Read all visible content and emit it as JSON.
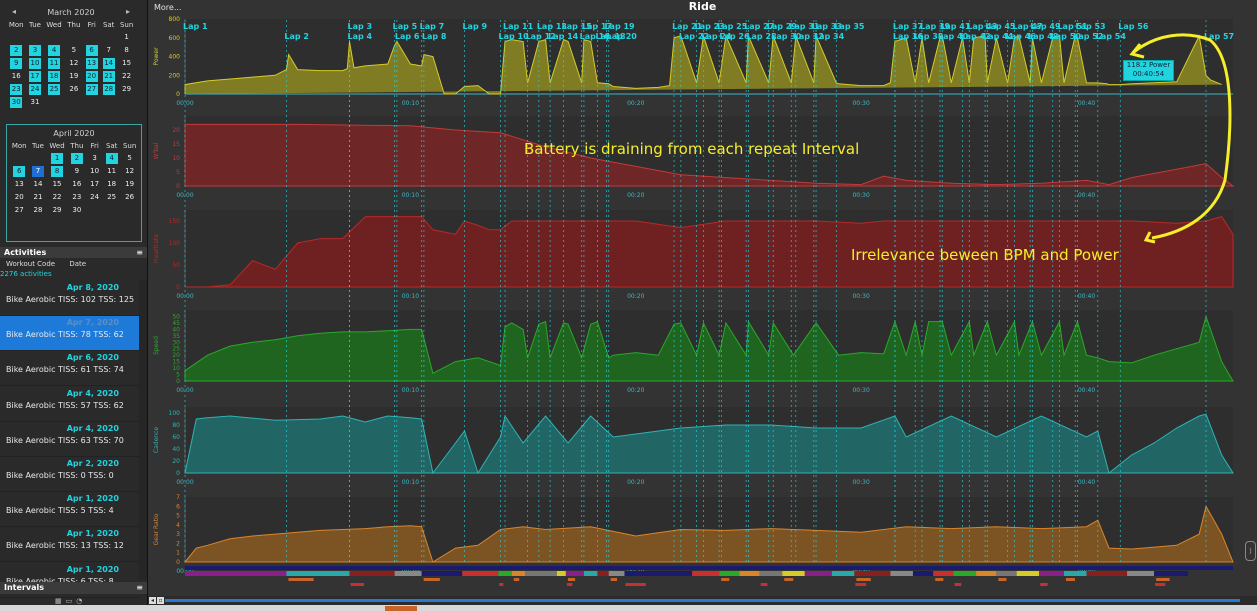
{
  "calendar_march": {
    "title": "March 2020",
    "weekdays": [
      "Mon",
      "Tue",
      "Wed",
      "Thu",
      "Fri",
      "Sat",
      "Sun"
    ],
    "weeks": [
      [
        "",
        "",
        "",
        "",
        "",
        "",
        "1"
      ],
      [
        "2",
        "3",
        "4",
        "5",
        "6",
        "7",
        "8"
      ],
      [
        "9",
        "10",
        "11",
        "12",
        "13",
        "14",
        "15"
      ],
      [
        "16",
        "17",
        "18",
        "19",
        "20",
        "21",
        "22"
      ],
      [
        "23",
        "24",
        "25",
        "26",
        "27",
        "28",
        "29"
      ],
      [
        "30",
        "31",
        "",
        "",
        "",
        "",
        ""
      ]
    ],
    "highlighted": [
      "2",
      "3",
      "4",
      "6",
      "9",
      "10",
      "11",
      "13",
      "14",
      "17",
      "18",
      "20",
      "21",
      "23",
      "24",
      "25",
      "27",
      "28",
      "30"
    ]
  },
  "calendar_april": {
    "title": "April 2020",
    "weekdays": [
      "Mon",
      "Tue",
      "Wed",
      "Thu",
      "Fri",
      "Sat",
      "Sun"
    ],
    "weeks": [
      [
        "",
        "",
        "1",
        "2",
        "3",
        "4",
        "5"
      ],
      [
        "6",
        "7",
        "8",
        "9",
        "10",
        "11",
        "12"
      ],
      [
        "13",
        "14",
        "15",
        "16",
        "17",
        "18",
        "19"
      ],
      [
        "20",
        "21",
        "22",
        "23",
        "24",
        "25",
        "26"
      ],
      [
        "27",
        "28",
        "29",
        "30",
        "",
        "",
        ""
      ]
    ],
    "highlighted": [
      "1",
      "2",
      "4",
      "6",
      "8"
    ],
    "selected": "7"
  },
  "activities": {
    "header": "Activities",
    "col_workout": "Workout Code",
    "col_date": "Date",
    "count": "2276 activities",
    "items": [
      {
        "date": "Apr 8, 2020",
        "text": "Bike Aerobic TISS: 102 TSS: 125"
      },
      {
        "date": "Apr 7, 2020",
        "text": "Bike Aerobic TISS: 78 TSS: 62"
      },
      {
        "date": "Apr 6, 2020",
        "text": "Bike Aerobic TISS: 61 TSS: 74"
      },
      {
        "date": "Apr 4, 2020",
        "text": "Bike Aerobic TISS: 57 TSS: 62"
      },
      {
        "date": "Apr 4, 2020",
        "text": "Bike Aerobic TISS: 63 TSS: 70"
      },
      {
        "date": "Apr 2, 2020",
        "text": "Bike Aerobic TISS: 0 TSS: 0"
      },
      {
        "date": "Apr 1, 2020",
        "text": "Bike Aerobic TISS: 5 TSS: 4"
      },
      {
        "date": "Apr 1, 2020",
        "text": "Bike Aerobic TISS: 13 TSS: 12"
      },
      {
        "date": "Apr 1, 2020",
        "text": "Bike Aerobic TISS: 6 TSS: 8"
      }
    ],
    "selected_index": 1
  },
  "intervals": {
    "header": "Intervals"
  },
  "more_label": "More...",
  "menu_icon": "≡",
  "ride_title": "Ride",
  "annotation_battery": "Battery is draining from each repeat Interval",
  "annotation_bpm": "Irrelevance beween BPM and Power",
  "tooltip": {
    "line1": "118.2 Power",
    "line2": "00:40:54"
  },
  "colors": {
    "power": "#d4cc2a",
    "wbal": "#c23a3a",
    "heartrate": "#b82828",
    "speed": "#2aa82a",
    "cadence": "#2fb3b3",
    "gear": "#d9852a",
    "lap_line": "#22d3e0",
    "annotation": "#f5ee2a"
  },
  "chart_data": {
    "type": "line",
    "x_unit": "elapsed time (hh:mm)",
    "x_range_minutes": [
      0,
      46.5
    ],
    "time_ticks": [
      "00:00",
      "00:10",
      "00:20",
      "00:30",
      "00:40"
    ],
    "laps": [
      {
        "label": "Lap 1",
        "t": 0.0
      },
      {
        "label": "Lap 2",
        "t": 4.5
      },
      {
        "label": "Lap 3",
        "t": 7.3
      },
      {
        "label": "Lap 4",
        "t": 7.3
      },
      {
        "label": "Lap 5",
        "t": 9.3
      },
      {
        "label": "Lap 6",
        "t": 9.4
      },
      {
        "label": "Lap 7",
        "t": 10.5
      },
      {
        "label": "Lap 8",
        "t": 10.6
      },
      {
        "label": "Lap 9",
        "t": 12.4
      },
      {
        "label": "Lap 10",
        "t": 14.0
      },
      {
        "label": "Lap 11",
        "t": 14.2
      },
      {
        "label": "Lap 12",
        "t": 15.2
      },
      {
        "label": "Lap 13",
        "t": 15.7
      },
      {
        "label": "Lap 14",
        "t": 16.2
      },
      {
        "label": "Lap 15",
        "t": 16.8
      },
      {
        "label": "Lap 16",
        "t": 17.6
      },
      {
        "label": "Lap 17",
        "t": 17.7
      },
      {
        "label": "Lap 18",
        "t": 18.3
      },
      {
        "label": "Lap 19",
        "t": 18.7
      },
      {
        "label": "Lap 20",
        "t": 18.8
      },
      {
        "label": "Lap 21",
        "t": 21.7
      },
      {
        "label": "Lap 22",
        "t": 22.0
      },
      {
        "label": "Lap 23",
        "t": 22.7
      },
      {
        "label": "Lap 24",
        "t": 23.0
      },
      {
        "label": "Lap 25",
        "t": 23.7
      },
      {
        "label": "Lap 26",
        "t": 23.8
      },
      {
        "label": "Lap 27",
        "t": 24.9
      },
      {
        "label": "Lap 28",
        "t": 25.0
      },
      {
        "label": "Lap 29",
        "t": 25.9
      },
      {
        "label": "Lap 30",
        "t": 26.1
      },
      {
        "label": "Lap 31",
        "t": 26.9
      },
      {
        "label": "Lap 32",
        "t": 27.1
      },
      {
        "label": "Lap 33",
        "t": 27.9
      },
      {
        "label": "Lap 34",
        "t": 28.0
      },
      {
        "label": "Lap 35",
        "t": 28.9
      },
      {
        "label": "Lap 36",
        "t": 31.5
      },
      {
        "label": "Lap 37",
        "t": 31.5
      },
      {
        "label": "Lap 38",
        "t": 32.4
      },
      {
        "label": "Lap 39",
        "t": 32.7
      },
      {
        "label": "Lap 40",
        "t": 33.5
      },
      {
        "label": "Lap 41",
        "t": 33.6
      },
      {
        "label": "Lap 42",
        "t": 34.5
      },
      {
        "label": "Lap 43",
        "t": 34.8
      },
      {
        "label": "Lap 44",
        "t": 35.5
      },
      {
        "label": "Lap 45",
        "t": 35.6
      },
      {
        "label": "Lap 46",
        "t": 36.5
      },
      {
        "label": "Lap 47",
        "t": 36.8
      },
      {
        "label": "Lap 48",
        "t": 37.5
      },
      {
        "label": "Lap 49",
        "t": 37.6
      },
      {
        "label": "Lap 50",
        "t": 38.5
      },
      {
        "label": "Lap 51",
        "t": 38.8
      },
      {
        "label": "Lap 52",
        "t": 39.5
      },
      {
        "label": "Lap 53",
        "t": 39.6
      },
      {
        "label": "Lap 54",
        "t": 40.5
      },
      {
        "label": "Lap 56",
        "t": 41.5
      },
      {
        "label": "Lap 57",
        "t": 45.3
      }
    ],
    "panels": [
      {
        "name": "Power",
        "ymin": 0,
        "ymax": 800,
        "ticks": [
          "0",
          "200",
          "400",
          "600",
          "800"
        ],
        "t": [
          0,
          1,
          2,
          3,
          4,
          4.5,
          4.6,
          5,
          6,
          7,
          7.2,
          7.3,
          7.5,
          8,
          9,
          9.3,
          9.4,
          10,
          10.5,
          10.6,
          11,
          11.5,
          12,
          12.4,
          13,
          13.5,
          14,
          14.2,
          14.5,
          15,
          15.2,
          15.7,
          16,
          16.2,
          16.8,
          17,
          17.6,
          17.7,
          18,
          18.3,
          18.8,
          19,
          20,
          21,
          21.5,
          21.7,
          22,
          22.7,
          23,
          23.7,
          24,
          24.9,
          25,
          25.9,
          26.1,
          26.9,
          27.1,
          27.9,
          28,
          28.9,
          29,
          30,
          31,
          31.3,
          31.5,
          32,
          32.4,
          32.7,
          33,
          33.5,
          33.6,
          34,
          34.5,
          34.8,
          35,
          35.5,
          35.6,
          36,
          36.5,
          36.8,
          37,
          37.5,
          37.6,
          38,
          38.5,
          38.8,
          39,
          39.5,
          39.6,
          40,
          40.5,
          40.9,
          41,
          41.5,
          42,
          43,
          44,
          45,
          45.3,
          45.5,
          46,
          46.5
        ],
        "v": [
          100,
          140,
          160,
          180,
          200,
          260,
          420,
          260,
          250,
          250,
          270,
          560,
          280,
          300,
          320,
          520,
          560,
          320,
          300,
          420,
          400,
          0,
          0,
          80,
          90,
          0,
          0,
          560,
          580,
          560,
          120,
          560,
          580,
          120,
          580,
          560,
          120,
          580,
          560,
          120,
          110,
          80,
          60,
          70,
          90,
          600,
          620,
          120,
          620,
          120,
          620,
          120,
          620,
          120,
          620,
          120,
          620,
          120,
          620,
          120,
          110,
          90,
          90,
          120,
          560,
          600,
          120,
          600,
          120,
          600,
          620,
          120,
          600,
          120,
          600,
          620,
          120,
          600,
          120,
          600,
          620,
          120,
          600,
          120,
          600,
          620,
          120,
          620,
          600,
          120,
          118,
          110,
          100,
          100,
          110,
          120,
          130,
          620,
          200,
          150,
          100
        ]
      },
      {
        "name": "W'bal",
        "ymin": 0,
        "ymax": 25,
        "ticks": [
          "0",
          "5",
          "10",
          "15",
          "20"
        ],
        "t": [
          0,
          5,
          10,
          12,
          13,
          14,
          16,
          18,
          20,
          22,
          24,
          26,
          28,
          30,
          31,
          32,
          34,
          36,
          38,
          40,
          41,
          42,
          44,
          45.3,
          46,
          46.5
        ],
        "v": [
          22,
          22,
          21.5,
          20,
          19.5,
          19,
          14,
          10,
          7,
          4,
          3,
          2,
          1,
          0.5,
          3.5,
          2,
          1,
          0.5,
          1,
          2,
          0.5,
          3,
          6,
          8,
          3,
          0
        ]
      },
      {
        "name": "Heartrate",
        "ymin": 0,
        "ymax": 175,
        "ticks": [
          "0",
          "50",
          "100",
          "150"
        ],
        "t": [
          0,
          1,
          2,
          3,
          4,
          4.5,
          5,
          6,
          7,
          8,
          9,
          10,
          10.5,
          11,
          12,
          12.4,
          13,
          13.5,
          14,
          14.5,
          16,
          18,
          20,
          22,
          24,
          26,
          28,
          30,
          31,
          32,
          34,
          36,
          38,
          40,
          41,
          42,
          44,
          45.3,
          46,
          46.5
        ],
        "v": [
          0,
          0,
          5,
          60,
          40,
          70,
          100,
          110,
          110,
          160,
          160,
          160,
          160,
          130,
          120,
          150,
          140,
          130,
          130,
          150,
          150,
          150,
          150,
          135,
          150,
          150,
          150,
          145,
          150,
          150,
          150,
          150,
          150,
          150,
          150,
          150,
          145,
          150,
          160,
          120
        ]
      },
      {
        "name": "Speed",
        "ymin": 0,
        "ymax": 55,
        "ticks": [
          "0",
          "5",
          "10",
          "15",
          "20",
          "25",
          "30",
          "35",
          "40",
          "45",
          "50"
        ],
        "t": [
          0,
          1,
          2,
          3,
          4,
          5,
          6,
          7,
          8,
          9,
          10,
          10.5,
          11,
          12,
          13,
          14,
          14.2,
          14.5,
          15,
          15.2,
          15.7,
          16,
          16.2,
          16.8,
          17,
          17.6,
          18,
          18.3,
          18.8,
          19,
          20,
          21,
          21.7,
          22,
          22.7,
          23,
          23.7,
          24,
          24.9,
          25,
          25.9,
          26.1,
          27,
          28,
          29,
          30,
          31,
          31.5,
          32,
          32.4,
          32.7,
          33,
          33.6,
          34,
          34.8,
          35,
          35.6,
          36,
          36.8,
          37,
          37.6,
          38,
          38.8,
          39,
          39.6,
          40,
          40.5,
          41,
          42,
          43,
          44,
          45,
          45.3,
          46,
          46.5
        ],
        "v": [
          8,
          20,
          27,
          30,
          32,
          35,
          37,
          38,
          38,
          39,
          40,
          40,
          6,
          15,
          18,
          12,
          42,
          45,
          40,
          18,
          44,
          46,
          18,
          45,
          44,
          18,
          44,
          46,
          18,
          20,
          22,
          20,
          44,
          45,
          20,
          45,
          20,
          45,
          20,
          46,
          20,
          45,
          20,
          45,
          20,
          22,
          21,
          46,
          20,
          46,
          20,
          46,
          46,
          20,
          46,
          20,
          46,
          20,
          46,
          20,
          46,
          20,
          46,
          20,
          46,
          20,
          18,
          15,
          14,
          20,
          25,
          30,
          50,
          15,
          0
        ]
      },
      {
        "name": "Cadence",
        "ymin": 0,
        "ymax": 110,
        "ticks": [
          "0",
          "20",
          "40",
          "60",
          "80",
          "100"
        ],
        "t": [
          0,
          0.5,
          1,
          2,
          4,
          6,
          7,
          8,
          9,
          10,
          10.5,
          11,
          12,
          12.4,
          13,
          14,
          14.2,
          15,
          16,
          17,
          18,
          19,
          20,
          22,
          24,
          26,
          28,
          30,
          31.5,
          32,
          34,
          36,
          38,
          40,
          40.5,
          41,
          42,
          43,
          44,
          45,
          45.3,
          46,
          46.5
        ],
        "v": [
          0,
          90,
          92,
          95,
          88,
          90,
          95,
          85,
          95,
          92,
          90,
          0,
          50,
          70,
          0,
          60,
          95,
          50,
          95,
          50,
          95,
          60,
          65,
          75,
          80,
          80,
          75,
          75,
          95,
          60,
          95,
          60,
          95,
          60,
          70,
          0,
          30,
          50,
          75,
          95,
          98,
          30,
          0
        ]
      },
      {
        "name": "Gear Ratio",
        "ymin": 0,
        "ymax": 7,
        "ticks": [
          "0",
          "1",
          "2",
          "3",
          "4",
          "5",
          "6",
          "7"
        ],
        "t": [
          0,
          0.5,
          1,
          2,
          3,
          4,
          5,
          6,
          7,
          8,
          9,
          10,
          10.5,
          11,
          12,
          13,
          14,
          15,
          16,
          18,
          20,
          22,
          24,
          26,
          28,
          30,
          32,
          34,
          36,
          38,
          40,
          40.5,
          41,
          42,
          44,
          45,
          45.3,
          46,
          46.5
        ],
        "v": [
          0,
          1.5,
          1.8,
          2.5,
          2.8,
          3,
          3.2,
          3.4,
          3.5,
          3.6,
          3.8,
          3.9,
          3.8,
          0,
          1.5,
          1.8,
          3.5,
          3.8,
          3.5,
          3.8,
          2.8,
          3.5,
          3.4,
          3.6,
          3.4,
          3.2,
          3.8,
          3.6,
          3.8,
          3.6,
          3.8,
          4.5,
          1.5,
          1.4,
          1.8,
          3,
          6,
          3,
          0
        ]
      }
    ]
  }
}
